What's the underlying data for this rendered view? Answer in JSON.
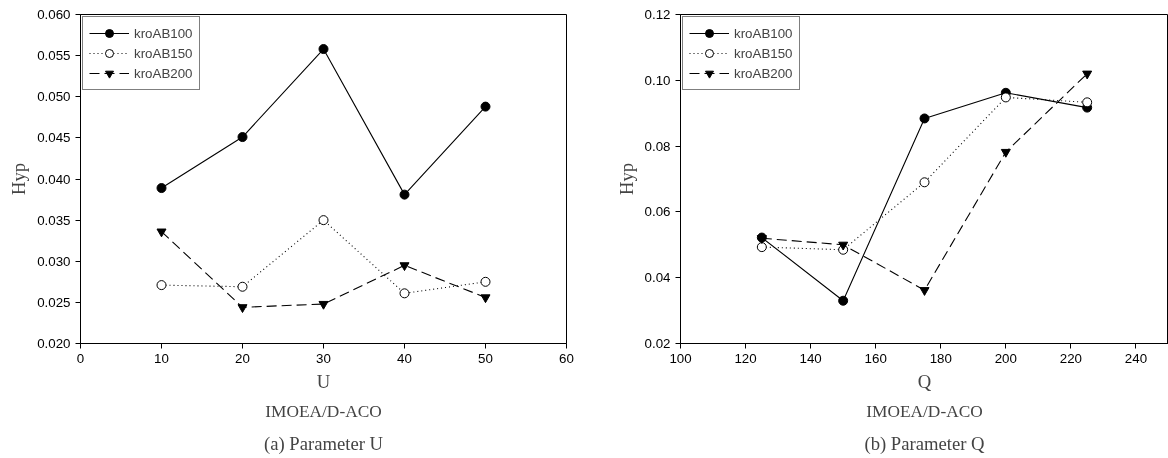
{
  "chart_data": [
    {
      "type": "line",
      "title": "(a) Parameter U",
      "annotations": [
        "IMOEA/D-ACO"
      ],
      "xlabel": "U",
      "ylabel": "Hyp",
      "x": [
        10,
        20,
        30,
        40,
        50
      ],
      "xlim": [
        0,
        60
      ],
      "xticks": [
        0,
        10,
        20,
        30,
        40,
        50,
        60
      ],
      "ylim": [
        0.02,
        0.06
      ],
      "yticks": [
        {
          "value": 0.02,
          "label": "0.020"
        },
        {
          "value": 0.025,
          "label": "0.025"
        },
        {
          "value": 0.03,
          "label": "0.030"
        },
        {
          "value": 0.035,
          "label": "0.035"
        },
        {
          "value": 0.04,
          "label": "0.040"
        },
        {
          "value": 0.045,
          "label": "0.045"
        },
        {
          "value": 0.05,
          "label": "0.050"
        },
        {
          "value": 0.055,
          "label": "0.055"
        },
        {
          "value": 0.06,
          "label": "0.060"
        }
      ],
      "grid": false,
      "legend": "top left",
      "series": [
        {
          "name": "kroAB100",
          "color": "#000000",
          "marker": "circle",
          "line_style": "solid",
          "values": [
            0.0389,
            0.0451,
            0.0558,
            0.0381,
            0.0488
          ]
        },
        {
          "name": "kroAB150",
          "color": "#000000",
          "marker": "circle",
          "line_style": "dotted",
          "values": [
            0.0271,
            0.0269,
            0.035,
            0.0261,
            0.0275
          ]
        },
        {
          "name": "kroAB200",
          "color": "#000000",
          "marker": "triangle",
          "line_style": "dashed",
          "values": [
            0.0336,
            0.0244,
            0.0248,
            0.0295,
            0.0256
          ]
        }
      ]
    },
    {
      "type": "line",
      "title": "(b) Parameter Q",
      "annotations": [
        "IMOEA/D-ACO"
      ],
      "xlabel": "Q",
      "ylabel": "Hyp",
      "x": [
        125,
        150,
        175,
        200,
        225
      ],
      "xlim": [
        100,
        250
      ],
      "xticks": [
        100,
        120,
        140,
        160,
        180,
        200,
        220,
        240
      ],
      "ylim": [
        0.02,
        0.12
      ],
      "yticks": [
        {
          "value": 0.02,
          "label": "0.02"
        },
        {
          "value": 0.04,
          "label": "0.04"
        },
        {
          "value": 0.06,
          "label": "0.06"
        },
        {
          "value": 0.08,
          "label": "0.08"
        },
        {
          "value": 0.1,
          "label": "0.10"
        },
        {
          "value": 0.12,
          "label": "0.12"
        }
      ],
      "grid": false,
      "legend": "top left",
      "series": [
        {
          "name": "kroAB100",
          "color": "#000000",
          "marker": "circle",
          "line_style": "solid",
          "values": [
            0.0522,
            0.033,
            0.0884,
            0.0962,
            0.0917
          ]
        },
        {
          "name": "kroAB150",
          "color": "#000000",
          "marker": "circle",
          "line_style": "dotted",
          "values": [
            0.0493,
            0.0485,
            0.069,
            0.0948,
            0.0933
          ]
        },
        {
          "name": "kroAB200",
          "color": "#000000",
          "marker": "triangle",
          "line_style": "dashed",
          "values": [
            0.052,
            0.05,
            0.0362,
            0.0782,
            0.102
          ]
        }
      ]
    }
  ]
}
